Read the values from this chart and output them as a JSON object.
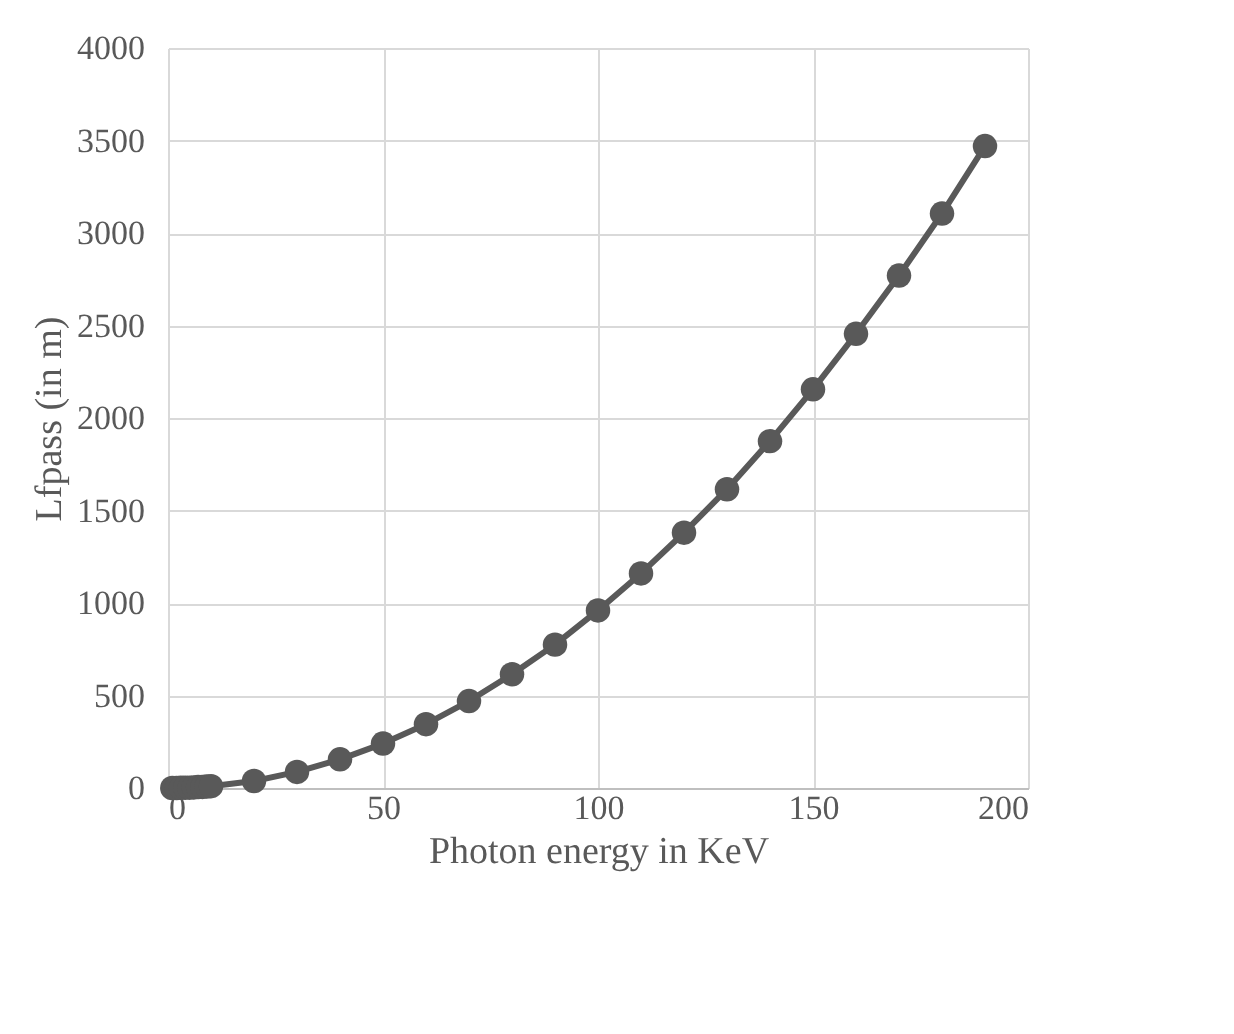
{
  "chart_data": {
    "type": "line",
    "xlabel": "Photon energy in KeV",
    "ylabel": "Lfpass (in m)",
    "x": [
      1,
      2,
      3,
      4,
      5,
      6,
      7,
      8,
      9,
      10,
      20,
      30,
      40,
      50,
      60,
      70,
      80,
      90,
      100,
      110,
      120,
      130,
      140,
      150,
      160,
      170,
      180,
      190
    ],
    "series": [
      {
        "color": "#595959",
        "values": [
          0,
          0,
          1,
          2,
          2,
          3,
          5,
          6,
          8,
          10,
          38,
          87,
          155,
          240,
          345,
          470,
          615,
          775,
          960,
          1160,
          1380,
          1615,
          1875,
          2155,
          2455,
          2770,
          3105,
          3470
        ]
      }
    ],
    "xlim": [
      0,
      200
    ],
    "xticks": [
      0,
      50,
      100,
      150,
      200
    ],
    "ylim": [
      0,
      4000
    ],
    "yticks": [
      0,
      500,
      1000,
      1500,
      2000,
      2500,
      3000,
      3500,
      4000
    ],
    "grid": true,
    "marker": "circle",
    "line_style": "solid"
  }
}
